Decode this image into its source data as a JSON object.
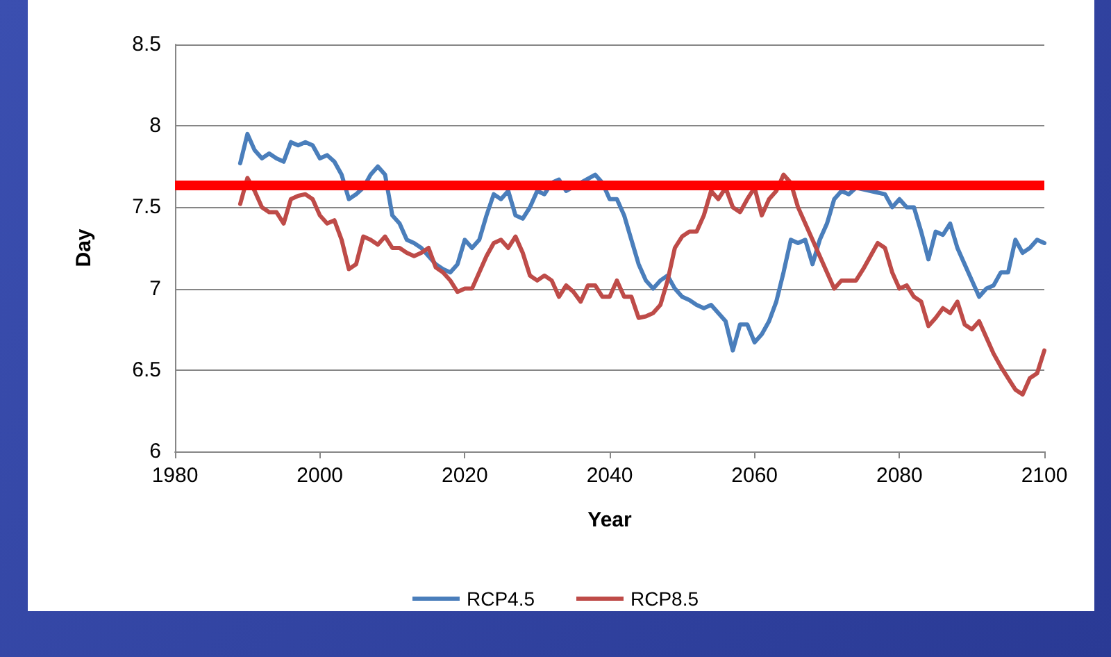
{
  "chart_data": {
    "type": "line",
    "xlabel": "Year",
    "ylabel": "Day",
    "x": [
      1989,
      1990,
      1991,
      1992,
      1993,
      1994,
      1995,
      1996,
      1997,
      1998,
      1999,
      2000,
      2001,
      2002,
      2003,
      2004,
      2005,
      2006,
      2007,
      2008,
      2009,
      2010,
      2011,
      2012,
      2013,
      2014,
      2015,
      2016,
      2017,
      2018,
      2019,
      2020,
      2021,
      2022,
      2023,
      2024,
      2025,
      2026,
      2027,
      2028,
      2029,
      2030,
      2031,
      2032,
      2033,
      2034,
      2035,
      2036,
      2037,
      2038,
      2039,
      2040,
      2041,
      2042,
      2043,
      2044,
      2045,
      2046,
      2047,
      2048,
      2049,
      2050,
      2051,
      2052,
      2053,
      2054,
      2055,
      2056,
      2057,
      2058,
      2059,
      2060,
      2061,
      2062,
      2063,
      2064,
      2065,
      2066,
      2067,
      2068,
      2069,
      2070,
      2071,
      2072,
      2073,
      2074,
      2075,
      2076,
      2077,
      2078,
      2079,
      2080,
      2081,
      2082,
      2083,
      2084,
      2085,
      2086,
      2087,
      2088,
      2089,
      2090,
      2091,
      2092,
      2093,
      2094,
      2095,
      2096,
      2097,
      2098,
      2099,
      2100
    ],
    "series": [
      {
        "name": "RCP4.5",
        "color": "#4a7ebb",
        "values": [
          7.77,
          7.95,
          7.85,
          7.8,
          7.83,
          7.8,
          7.78,
          7.9,
          7.88,
          7.9,
          7.88,
          7.8,
          7.82,
          7.78,
          7.7,
          7.55,
          7.58,
          7.62,
          7.7,
          7.75,
          7.7,
          7.45,
          7.4,
          7.3,
          7.28,
          7.25,
          7.2,
          7.15,
          7.12,
          7.1,
          7.15,
          7.3,
          7.25,
          7.3,
          7.45,
          7.58,
          7.55,
          7.6,
          7.45,
          7.43,
          7.5,
          7.6,
          7.58,
          7.65,
          7.67,
          7.6,
          null,
          null,
          null,
          7.7,
          7.65,
          7.55,
          7.55,
          7.45,
          7.3,
          7.15,
          7.05,
          7.0,
          7.05,
          7.08,
          7.0,
          6.95,
          6.93,
          6.9,
          6.88,
          6.9,
          6.85,
          6.8,
          6.62,
          6.78,
          6.78,
          6.67,
          6.72,
          6.8,
          6.92,
          7.1,
          7.3,
          7.28,
          7.3,
          7.15,
          7.3,
          7.4,
          7.55,
          7.6,
          7.58,
          7.62,
          null,
          null,
          null,
          7.58,
          7.5,
          7.55,
          7.5,
          7.5,
          7.35,
          7.18,
          7.35,
          7.33,
          7.4,
          7.25,
          7.15,
          7.05,
          6.95,
          7.0,
          7.02,
          7.1,
          7.1,
          7.3,
          7.22,
          7.25,
          7.3,
          7.28
        ]
      },
      {
        "name": "RCP8.5",
        "color": "#be4b48",
        "values": [
          7.52,
          7.68,
          7.6,
          7.5,
          7.47,
          7.47,
          7.4,
          7.55,
          7.57,
          7.58,
          7.55,
          7.45,
          7.4,
          7.42,
          7.3,
          7.12,
          7.15,
          7.32,
          7.3,
          7.27,
          7.32,
          7.25,
          7.25,
          7.22,
          7.2,
          7.22,
          7.25,
          7.13,
          7.1,
          7.05,
          6.98,
          7.0,
          7.0,
          7.1,
          7.2,
          7.28,
          7.3,
          7.25,
          7.32,
          7.22,
          7.08,
          7.05,
          7.08,
          7.05,
          6.95,
          7.02,
          6.98,
          6.92,
          7.02,
          7.02,
          6.95,
          6.95,
          7.05,
          6.95,
          6.95,
          6.82,
          6.83,
          6.85,
          6.9,
          7.05,
          7.25,
          7.32,
          7.35,
          7.35,
          7.45,
          7.6,
          7.55,
          7.62,
          7.5,
          7.47,
          7.55,
          7.62,
          7.45,
          7.55,
          7.6,
          7.7,
          7.65,
          7.5,
          7.4,
          7.3,
          7.2,
          7.1,
          7.0,
          7.05,
          7.05,
          7.05,
          7.12,
          7.2,
          7.28,
          7.25,
          7.1,
          7.0,
          7.02,
          6.95,
          6.92,
          6.77,
          6.82,
          6.88,
          6.85,
          6.92,
          6.78,
          6.75,
          6.8,
          6.7,
          6.6,
          6.52,
          6.45,
          6.38,
          6.35,
          6.45,
          6.48,
          6.62
        ]
      }
    ],
    "xlim": [
      1980,
      2100
    ],
    "xticks": [
      1980,
      2000,
      2020,
      2040,
      2060,
      2080,
      2100
    ],
    "ylim": [
      6,
      8.5
    ],
    "yticks": [
      {
        "value": 6,
        "label": "6"
      },
      {
        "value": 6.5,
        "label": "6.5"
      },
      {
        "value": 7,
        "label": "7"
      },
      {
        "value": 7.5,
        "label": "7.5"
      },
      {
        "value": 8,
        "label": "8"
      },
      {
        "value": 8.5,
        "label": "8.5"
      }
    ],
    "ref_lines": [
      {
        "axis": "y",
        "value": 7.64,
        "color": "#ff0000",
        "line_style": "solid"
      }
    ],
    "grid": "y",
    "legend": "bottom",
    "marker": "none",
    "line_style": "solid"
  }
}
